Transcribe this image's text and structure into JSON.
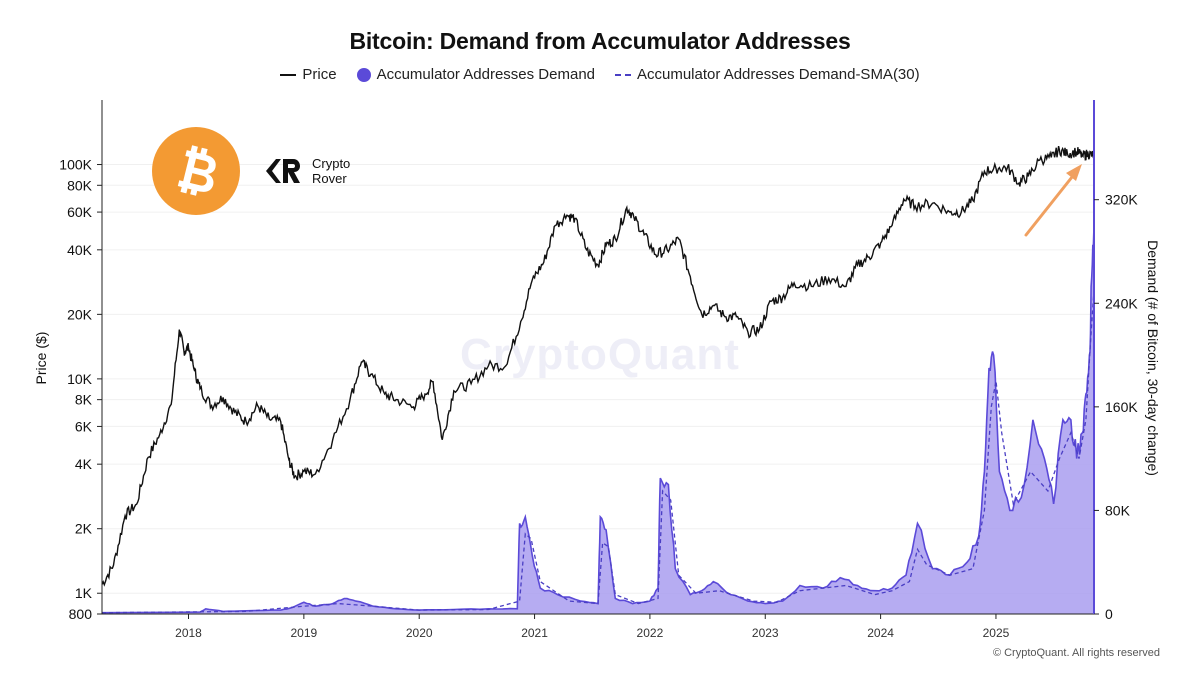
{
  "chart_data": {
    "type": "line",
    "title": "Bitcoin: Demand from Accumulator Addresses",
    "legend": {
      "position": "top-center",
      "entries": [
        {
          "name": "Price",
          "style": "solid-line",
          "color": "#111111"
        },
        {
          "name": "Accumulator Addresses Demand",
          "style": "filled-area",
          "color": "#5b4ad8"
        },
        {
          "name": "Accumulator Addresses Demand-SMA(30)",
          "style": "dashed-line",
          "color": "#4a3fc4"
        }
      ]
    },
    "y_left": {
      "label": "Price ($)",
      "scale": "log",
      "range": [
        800,
        200000
      ],
      "ticks": [
        800,
        1000,
        2000,
        4000,
        6000,
        8000,
        10000,
        20000,
        40000,
        60000,
        80000,
        100000
      ],
      "tick_labels": [
        "800",
        "1K",
        "2K",
        "4K",
        "6K",
        "8K",
        "10K",
        "20K",
        "40K",
        "60K",
        "80K",
        "100K"
      ]
    },
    "y_right": {
      "label": "Demand (# of Bitcoin, 30-day change)",
      "scale": "linear",
      "range": [
        0,
        397000
      ],
      "ticks": [
        0,
        80000,
        160000,
        240000,
        320000
      ],
      "tick_labels": [
        "0",
        "80K",
        "160K",
        "240K",
        "320K"
      ]
    },
    "x_axis": {
      "range": [
        2017.25,
        2025.85
      ],
      "ticks": [
        2018,
        2019,
        2020,
        2021,
        2022,
        2023,
        2024,
        2025
      ],
      "tick_labels": [
        "2018",
        "2019",
        "2020",
        "2021",
        "2022",
        "2023",
        "2024",
        "2025"
      ]
    },
    "grid": "horizontal",
    "series": [
      {
        "name": "Price",
        "axis": "left",
        "x": [
          2017.25,
          2017.35,
          2017.45,
          2017.55,
          2017.65,
          2017.75,
          2017.85,
          2017.92,
          2017.96,
          2018.0,
          2018.05,
          2018.1,
          2018.2,
          2018.3,
          2018.4,
          2018.5,
          2018.6,
          2018.7,
          2018.8,
          2018.87,
          2018.92,
          2019.0,
          2019.1,
          2019.25,
          2019.4,
          2019.5,
          2019.58,
          2019.7,
          2019.8,
          2019.95,
          2020.05,
          2020.12,
          2020.2,
          2020.3,
          2020.45,
          2020.6,
          2020.75,
          2020.88,
          2020.98,
          2021.08,
          2021.18,
          2021.28,
          2021.35,
          2021.45,
          2021.55,
          2021.62,
          2021.7,
          2021.8,
          2021.86,
          2021.95,
          2022.05,
          2022.15,
          2022.25,
          2022.35,
          2022.45,
          2022.55,
          2022.65,
          2022.75,
          2022.85,
          2022.95,
          2023.05,
          2023.15,
          2023.25,
          2023.4,
          2023.55,
          2023.7,
          2023.8,
          2023.9,
          2024.0,
          2024.1,
          2024.2,
          2024.3,
          2024.45,
          2024.6,
          2024.7,
          2024.8,
          2024.9,
          2025.0,
          2025.1,
          2025.2,
          2025.28,
          2025.38,
          2025.48,
          2025.55,
          2025.62,
          2025.7,
          2025.75,
          2025.8,
          2025.85
        ],
        "y": [
          1100,
          1350,
          2300,
          2600,
          4300,
          5500,
          7600,
          17000,
          13500,
          14000,
          11000,
          9000,
          7500,
          8200,
          7000,
          6300,
          7500,
          6500,
          6300,
          4200,
          3500,
          3700,
          3600,
          5200,
          8000,
          12000,
          10500,
          8500,
          8000,
          7400,
          8500,
          9700,
          5200,
          8800,
          9500,
          11500,
          11500,
          18500,
          29000,
          35000,
          52000,
          58000,
          56000,
          40000,
          34000,
          42000,
          45000,
          63000,
          57000,
          47000,
          38000,
          40000,
          45000,
          30000,
          20000,
          22000,
          19500,
          19500,
          16500,
          17000,
          23000,
          24000,
          28000,
          27000,
          29500,
          27000,
          34000,
          37000,
          43000,
          52000,
          69000,
          64000,
          66000,
          60000,
          60000,
          68000,
          93000,
          96000,
          97000,
          82000,
          88000,
          105000,
          108000,
          117000,
          112000,
          115000,
          110000,
          112000,
          110000
        ]
      },
      {
        "name": "Accumulator Addresses Demand",
        "axis": "right",
        "x": [
          2017.25,
          2018.1,
          2018.15,
          2018.3,
          2018.5,
          2018.8,
          2018.9,
          2019.0,
          2019.1,
          2019.25,
          2019.35,
          2019.45,
          2019.6,
          2019.8,
          2020.0,
          2020.3,
          2020.6,
          2020.85,
          2020.87,
          2020.92,
          2020.98,
          2021.05,
          2021.2,
          2021.4,
          2021.55,
          2021.57,
          2021.62,
          2021.7,
          2021.85,
          2022.0,
          2022.07,
          2022.09,
          2022.16,
          2022.22,
          2022.35,
          2022.45,
          2022.55,
          2022.7,
          2022.85,
          2023.0,
          2023.15,
          2023.3,
          2023.5,
          2023.65,
          2023.8,
          2023.95,
          2024.1,
          2024.22,
          2024.32,
          2024.45,
          2024.6,
          2024.75,
          2024.85,
          2024.9,
          2024.94,
          2024.98,
          2025.03,
          2025.12,
          2025.22,
          2025.32,
          2025.42,
          2025.5,
          2025.58,
          2025.65,
          2025.7,
          2025.75,
          2025.78,
          2025.81,
          2025.83,
          2025.85
        ],
        "y": [
          1000,
          1500,
          4000,
          2000,
          2500,
          3000,
          5000,
          9000,
          6000,
          8000,
          12000,
          10000,
          6000,
          4000,
          3000,
          3500,
          4000,
          4000,
          70000,
          75000,
          45000,
          20000,
          15000,
          10000,
          8000,
          75000,
          65000,
          12000,
          8000,
          10000,
          20000,
          105000,
          100000,
          35000,
          15000,
          18000,
          25000,
          15000,
          10000,
          8000,
          10000,
          22000,
          20000,
          28000,
          22000,
          18000,
          20000,
          30000,
          70000,
          35000,
          30000,
          40000,
          60000,
          110000,
          190000,
          200000,
          110000,
          80000,
          90000,
          150000,
          120000,
          85000,
          150000,
          150000,
          120000,
          140000,
          170000,
          200000,
          260000,
          300000
        ]
      },
      {
        "name": "Accumulator Addresses Demand-SMA(30)",
        "axis": "right",
        "x": [
          2017.25,
          2018.5,
          2019.0,
          2019.3,
          2019.6,
          2020.0,
          2020.6,
          2020.87,
          2020.92,
          2020.97,
          2021.05,
          2021.3,
          2021.55,
          2021.59,
          2021.64,
          2021.7,
          2021.9,
          2022.07,
          2022.11,
          2022.18,
          2022.25,
          2022.4,
          2022.6,
          2022.9,
          2023.1,
          2023.3,
          2023.5,
          2023.7,
          2023.95,
          2024.1,
          2024.25,
          2024.32,
          2024.4,
          2024.6,
          2024.8,
          2024.9,
          2024.96,
          2025.0,
          2025.05,
          2025.15,
          2025.3,
          2025.45,
          2025.55,
          2025.65,
          2025.72,
          2025.78,
          2025.82,
          2025.85
        ],
        "y": [
          1000,
          2000,
          6000,
          8000,
          6000,
          3000,
          3500,
          10000,
          62000,
          58000,
          25000,
          10000,
          8000,
          55000,
          52000,
          15000,
          8000,
          12000,
          95000,
          88000,
          30000,
          16000,
          18000,
          10000,
          9000,
          18000,
          20000,
          22000,
          15000,
          18000,
          25000,
          50000,
          38000,
          30000,
          35000,
          80000,
          160000,
          180000,
          140000,
          85000,
          110000,
          95000,
          120000,
          140000,
          120000,
          150000,
          210000,
          250000
        ]
      }
    ]
  },
  "brand": {
    "name_line1": "Crypto",
    "name_line2": "Rover"
  },
  "watermark": "CryptoQuant",
  "copyright": "© CryptoQuant. All rights reserved"
}
